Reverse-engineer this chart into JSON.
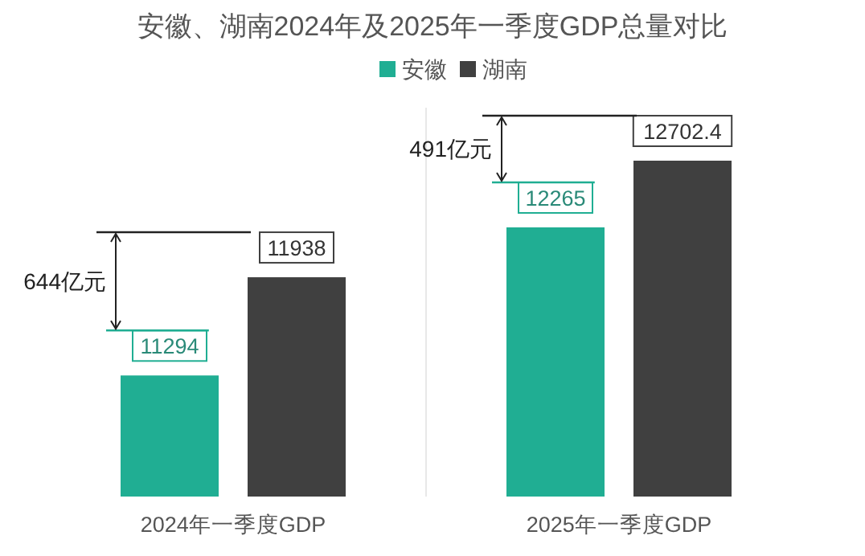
{
  "chart_data": {
    "type": "bar",
    "title": "安徽、湖南2024年及2025年一季度GDP总量对比",
    "categories": [
      "2024年一季度GDP",
      "2025年一季度GDP"
    ],
    "series": [
      {
        "name": "安徽",
        "color": "#20ae93",
        "values": [
          11294,
          12265
        ]
      },
      {
        "name": "湖南",
        "color": "#404040",
        "values": [
          11938,
          12702.4
        ]
      }
    ],
    "ylim": [
      10500,
      13050
    ],
    "tick_labels": "x",
    "data_labels": true,
    "legend": "top",
    "annotations": [
      "644亿元",
      "491亿元"
    ]
  }
}
